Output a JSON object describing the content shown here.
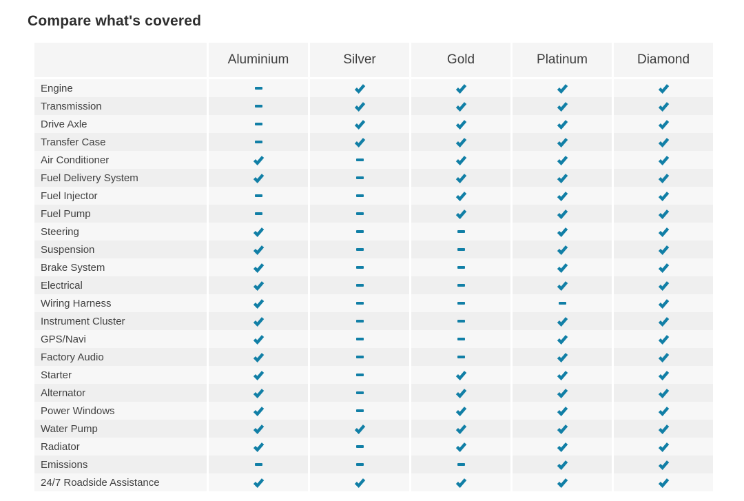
{
  "page": {
    "title": "Compare what's covered"
  },
  "table": {
    "plans": [
      "Aluminium",
      "Silver",
      "Gold",
      "Platinum",
      "Diamond"
    ],
    "rows": [
      {
        "label": "Engine",
        "coverage": [
          "dash",
          "check",
          "check",
          "check",
          "check"
        ]
      },
      {
        "label": "Transmission",
        "coverage": [
          "dash",
          "check",
          "check",
          "check",
          "check"
        ]
      },
      {
        "label": "Drive Axle",
        "coverage": [
          "dash",
          "check",
          "check",
          "check",
          "check"
        ]
      },
      {
        "label": "Transfer Case",
        "coverage": [
          "dash",
          "check",
          "check",
          "check",
          "check"
        ]
      },
      {
        "label": "Air Conditioner",
        "coverage": [
          "check",
          "dash",
          "check",
          "check",
          "check"
        ]
      },
      {
        "label": "Fuel Delivery System",
        "coverage": [
          "check",
          "dash",
          "check",
          "check",
          "check"
        ]
      },
      {
        "label": "Fuel Injector",
        "coverage": [
          "dash",
          "dash",
          "check",
          "check",
          "check"
        ]
      },
      {
        "label": "Fuel Pump",
        "coverage": [
          "dash",
          "dash",
          "check",
          "check",
          "check"
        ]
      },
      {
        "label": "Steering",
        "coverage": [
          "check",
          "dash",
          "dash",
          "check",
          "check"
        ]
      },
      {
        "label": "Suspension",
        "coverage": [
          "check",
          "dash",
          "dash",
          "check",
          "check"
        ]
      },
      {
        "label": "Brake System",
        "coverage": [
          "check",
          "dash",
          "dash",
          "check",
          "check"
        ]
      },
      {
        "label": "Electrical",
        "coverage": [
          "check",
          "dash",
          "dash",
          "check",
          "check"
        ]
      },
      {
        "label": "Wiring Harness",
        "coverage": [
          "check",
          "dash",
          "dash",
          "dash",
          "check"
        ]
      },
      {
        "label": "Instrument Cluster",
        "coverage": [
          "check",
          "dash",
          "dash",
          "check",
          "check"
        ]
      },
      {
        "label": "GPS/Navi",
        "coverage": [
          "check",
          "dash",
          "dash",
          "check",
          "check"
        ]
      },
      {
        "label": "Factory Audio",
        "coverage": [
          "check",
          "dash",
          "dash",
          "check",
          "check"
        ]
      },
      {
        "label": "Starter",
        "coverage": [
          "check",
          "dash",
          "check",
          "check",
          "check"
        ]
      },
      {
        "label": "Alternator",
        "coverage": [
          "check",
          "dash",
          "check",
          "check",
          "check"
        ]
      },
      {
        "label": "Power Windows",
        "coverage": [
          "check",
          "dash",
          "check",
          "check",
          "check"
        ]
      },
      {
        "label": "Water Pump",
        "coverage": [
          "check",
          "check",
          "check",
          "check",
          "check"
        ]
      },
      {
        "label": "Radiator",
        "coverage": [
          "check",
          "dash",
          "check",
          "check",
          "check"
        ]
      },
      {
        "label": "Emissions",
        "coverage": [
          "dash",
          "dash",
          "dash",
          "check",
          "check"
        ]
      },
      {
        "label": "24/7 Roadside Assistance",
        "coverage": [
          "check",
          "check",
          "check",
          "check",
          "check"
        ]
      }
    ]
  },
  "icons": {
    "covered": "check-icon",
    "not_covered": "dash-icon"
  },
  "colors": {
    "accent_teal": "#117fa6",
    "header_bg": "#f5f5f5",
    "row_light": "#f7f7f7",
    "row_dark": "#efefef",
    "title_text": "#2e2e2e",
    "label_text": "#414141"
  }
}
